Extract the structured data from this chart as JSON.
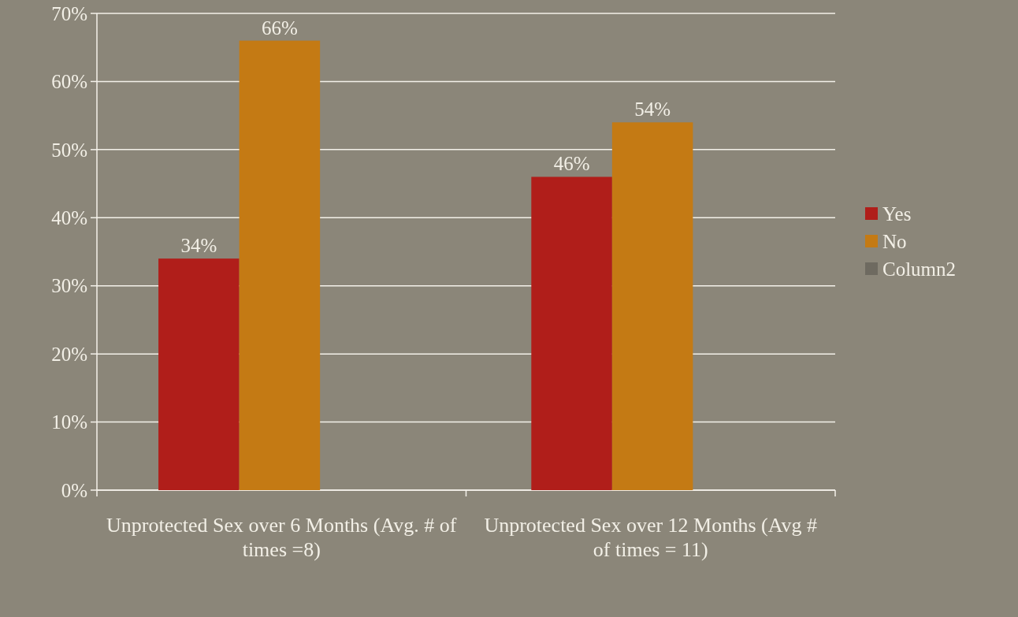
{
  "chart_data": {
    "type": "bar",
    "categories": [
      "Unprotected Sex over 6 Months (Avg. # of times =8)",
      "Unprotected Sex over 12 Months (Avg # of times = 11)"
    ],
    "series": [
      {
        "name": "Yes",
        "color": "#b01e1a",
        "values": [
          34,
          46
        ],
        "value_labels": [
          "34%",
          "46%"
        ]
      },
      {
        "name": "No",
        "color": "#c47a14",
        "values": [
          66,
          54
        ],
        "value_labels": [
          "66%",
          "54%"
        ]
      },
      {
        "name": "Column2",
        "color": "#6e6a60",
        "values": [
          null,
          null
        ]
      }
    ],
    "ylim": [
      0,
      70
    ],
    "yticks": [
      {
        "value": 0,
        "label": "0%"
      },
      {
        "value": 10,
        "label": "10%"
      },
      {
        "value": 20,
        "label": "20%"
      },
      {
        "value": 30,
        "label": "30%"
      },
      {
        "value": 40,
        "label": "40%"
      },
      {
        "value": 50,
        "label": "50%"
      },
      {
        "value": 60,
        "label": "60%"
      },
      {
        "value": 70,
        "label": "70%"
      }
    ],
    "grid": "y",
    "legend": "right"
  }
}
